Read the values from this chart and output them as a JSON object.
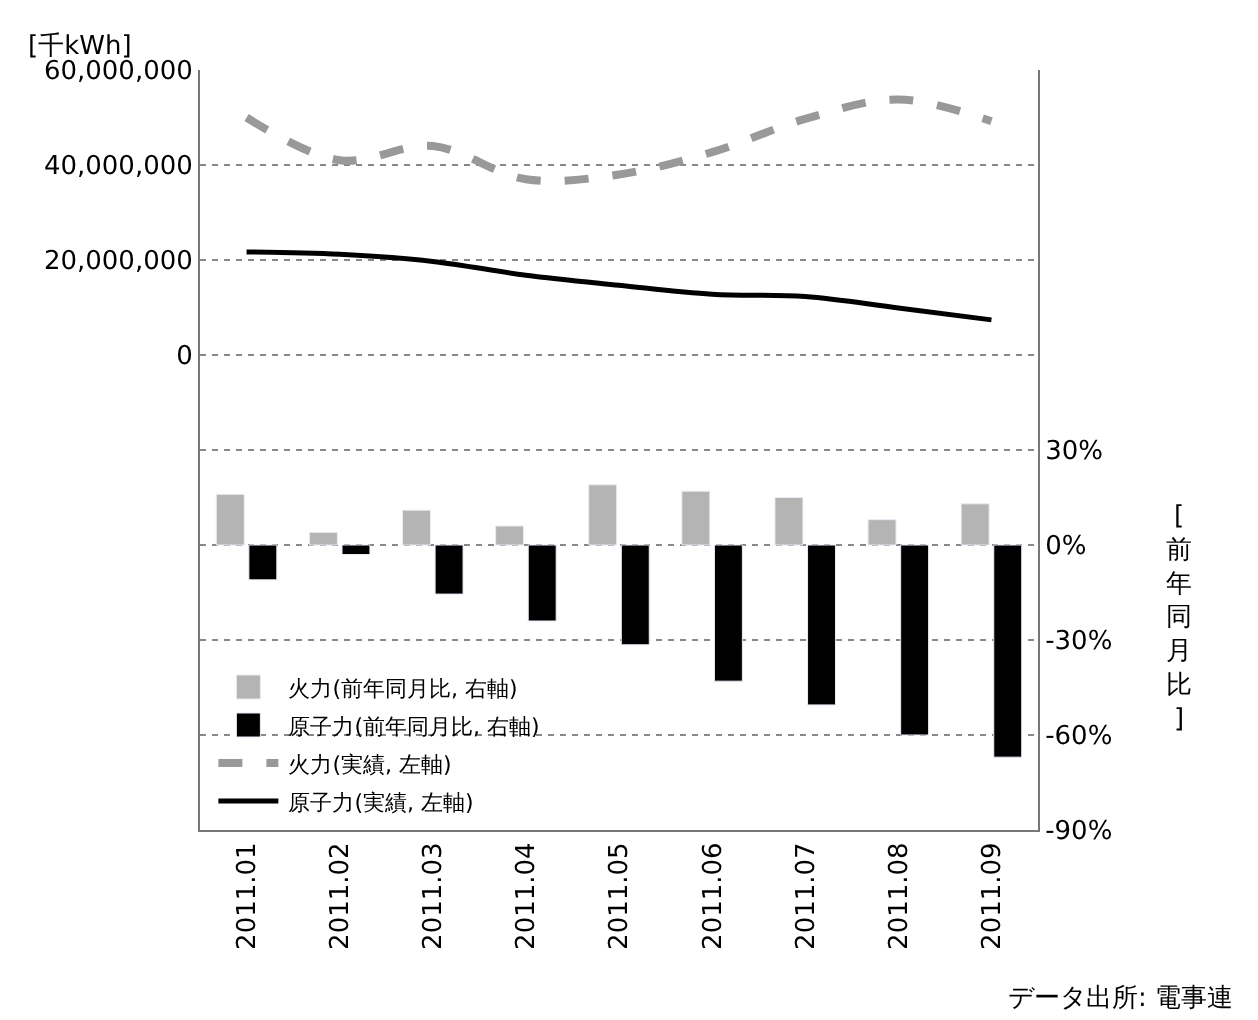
{
  "chart_data": {
    "type": "bar",
    "categories": [
      "2011.01",
      "2011.02",
      "2011.03",
      "2011.04",
      "2011.05",
      "2011.06",
      "2011.07",
      "2011.08",
      "2011.09"
    ],
    "series": [
      {
        "name": "火力(前年同月比, 右軸)",
        "axis": "y2",
        "color": "#b4b4b4",
        "values": [
          16,
          4,
          11,
          6,
          19,
          17,
          15,
          8,
          13
        ]
      },
      {
        "name": "原子力(前年同月比, 右軸)",
        "axis": "y2",
        "color": "#000000",
        "values": [
          -11,
          -3,
          -15.5,
          -24,
          -31.5,
          -43,
          -50.5,
          -60,
          -67
        ]
      },
      {
        "name": "火力(実績, 左軸)",
        "type": "line",
        "line_style": "dashed",
        "color": "#999999",
        "values": [
          50000000,
          41000000,
          44000000,
          37000000,
          38000000,
          42700000,
          49700000,
          53800000,
          49200000
        ]
      },
      {
        "name": "原子力(実績, 左軸)",
        "type": "line",
        "line_style": "solid",
        "color": "#000000",
        "values": [
          21700000,
          21200000,
          19700000,
          16800000,
          14700000,
          12800000,
          12300000,
          9900000,
          7400000
        ]
      }
    ],
    "ylabel": "[千kWh]",
    "y2label": "[前年同月比]",
    "ylim": [
      -100000000,
      60000000
    ],
    "yticks": [
      {
        "value": 0,
        "label": "0"
      },
      {
        "value": 20000000,
        "label": "20,000,000"
      },
      {
        "value": 40000000,
        "label": "40,000,000"
      },
      {
        "value": 60000000,
        "label": "60,000,000"
      }
    ],
    "y2lim": [
      -90,
      150
    ],
    "y2ticks": [
      {
        "value": -90,
        "label": "-90%"
      },
      {
        "value": -60,
        "label": "-60%"
      },
      {
        "value": -30,
        "label": "-30%"
      },
      {
        "value": 0,
        "label": "0%"
      },
      {
        "value": 30,
        "label": "30%"
      }
    ],
    "grid": "y",
    "legend": "bottom left",
    "marker": "none",
    "annotations": [
      "データ出所: 電事連"
    ]
  }
}
